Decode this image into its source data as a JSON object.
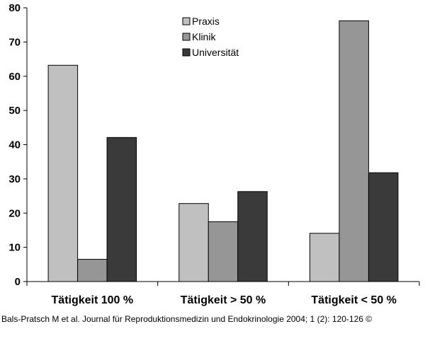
{
  "chart_data": {
    "type": "bar",
    "title": "",
    "xlabel": "",
    "ylabel": "",
    "categories": [
      "Tätigkeit 100 %",
      "Tätigkeit > 50 %",
      "Tätigkeit < 50 %"
    ],
    "series": [
      {
        "name": "Praxis",
        "values": [
          63.2,
          22.8,
          14.1
        ],
        "color": "#c0c0c0"
      },
      {
        "name": "Klinik",
        "values": [
          6.5,
          17.5,
          76.2
        ],
        "color": "#969696"
      },
      {
        "name": "Universität",
        "values": [
          42.1,
          26.3,
          31.8
        ],
        "color": "#3a3a3a"
      }
    ],
    "ylim": [
      0,
      80
    ],
    "yticks": [
      "0",
      "10",
      "20",
      "30",
      "40",
      "50",
      "60",
      "70",
      "80"
    ],
    "grid": false,
    "legend": "top-center"
  },
  "caption": "Bals-Pratsch M et al. Journal für Reproduktionsmedizin und Endokrinologie 2004; 1 (2): 120-126 ©"
}
